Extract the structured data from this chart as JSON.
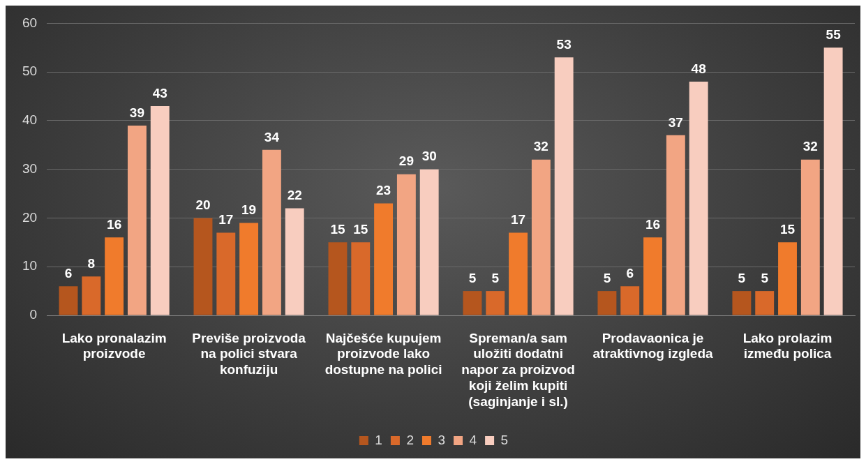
{
  "chart_data": {
    "type": "bar",
    "categories": [
      "Lako pronalazim proizvode",
      "Previše proizvoda na polici stvara konfuziju",
      "Najčešće kupujem proizvode lako dostupne na polici",
      "Spreman/a sam uložiti dodatni napor za proizvod koji želim kupiti (saginjanje i sl.)",
      "Prodavaonica je atraktivnog izgleda",
      "Lako prolazim između polica"
    ],
    "series": [
      {
        "name": "1",
        "color": "#b5561e",
        "values": [
          6,
          20,
          15,
          5,
          5,
          5
        ]
      },
      {
        "name": "2",
        "color": "#d9692a",
        "values": [
          8,
          17,
          15,
          5,
          6,
          5
        ]
      },
      {
        "name": "3",
        "color": "#f07b2c",
        "values": [
          16,
          19,
          23,
          17,
          16,
          15
        ]
      },
      {
        "name": "4",
        "color": "#f2a583",
        "values": [
          39,
          34,
          29,
          32,
          37,
          32
        ]
      },
      {
        "name": "5",
        "color": "#f8cdbf",
        "values": [
          43,
          22,
          30,
          53,
          48,
          55
        ]
      }
    ],
    "ylim": [
      0,
      60
    ],
    "yticks": [
      0,
      10,
      20,
      30,
      40,
      50,
      60
    ],
    "grid": "y",
    "legend": "bottom",
    "data_labels": true
  }
}
